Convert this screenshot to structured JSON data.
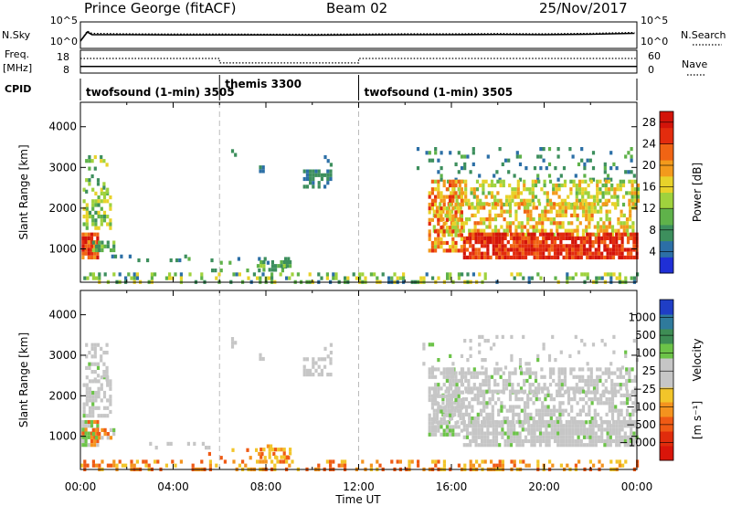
{
  "header": {
    "station": "Prince George (fitACF)",
    "beam": "Beam 02",
    "date": "25/Nov/2017"
  },
  "colors": {
    "scale_power": [
      "#1f2fd6",
      "#2c6fa6",
      "#3d8f5d",
      "#5fb24a",
      "#9fd23d",
      "#e8d22a",
      "#f39a1c",
      "#f06414",
      "#e32c0e",
      "#d3140a"
    ],
    "scale_velocity": [
      "#1f3ec6",
      "#2f7a9c",
      "#3e8d55",
      "#6cc348",
      "#c6c6c6",
      "#c6c6c6",
      "#f2c52a",
      "#f4931e",
      "#ef5a14",
      "#e02c0c",
      "#d9150a"
    ],
    "ground_scatter": "#c6c6c6"
  },
  "chart_data": [
    {
      "type": "line",
      "panel": "N.Sky / N.Search",
      "ylabel_left": "N.Sky",
      "ylabel_right": "N.Search",
      "left_ticks": [
        "10^5",
        "10^0"
      ],
      "right_ticks": [
        "10^5",
        "10^0"
      ],
      "ylim_log10": [
        0,
        5
      ],
      "x": [
        0,
        0.3,
        0.5,
        2,
        4,
        6,
        8,
        10,
        12,
        14,
        16,
        18,
        20,
        22,
        23.9
      ],
      "series": [
        {
          "name": "N.Sky",
          "style": "solid",
          "values": [
            1.2,
            3.2,
            2.6,
            2.6,
            2.55,
            2.55,
            2.55,
            2.5,
            2.55,
            2.6,
            2.6,
            2.65,
            2.6,
            2.7,
            2.9
          ]
        },
        {
          "name": "N.Search",
          "style": "dotted",
          "values": [
            1.2,
            3.4,
            2.9,
            2.8,
            2.75,
            2.75,
            2.7,
            2.7,
            2.75,
            2.8,
            2.8,
            2.85,
            2.8,
            2.9,
            3.1
          ]
        }
      ]
    },
    {
      "type": "line",
      "panel": "Freq. / Nave",
      "ylabel_left": "Freq.",
      "ylabel_left_unit": "[MHz]",
      "ylabel_right": "Nave",
      "left_ticks": [
        "18",
        "8"
      ],
      "right_ticks": [
        "60",
        "0"
      ],
      "ylim_left": [
        8,
        18
      ],
      "ylim_right": [
        0,
        60
      ],
      "series": [
        {
          "name": "Freq.",
          "style": "solid",
          "x": [
            0,
            24
          ],
          "values": [
            10.5,
            10.5
          ]
        },
        {
          "name": "Nave",
          "style": "dotted",
          "x": [
            0,
            6,
            6,
            12,
            12,
            24
          ],
          "values": [
            40,
            40,
            26,
            26,
            40,
            40
          ]
        }
      ]
    },
    {
      "type": "timeline",
      "panel": "CPID",
      "ylabel": "CPID",
      "segments": [
        {
          "start": 0,
          "end": 6,
          "label": "twofsound (1-min) 3505"
        },
        {
          "start": 6,
          "end": 12,
          "label": "themis 3300"
        },
        {
          "start": 12,
          "end": 24,
          "label": "twofsound (1-min) 3505"
        }
      ]
    },
    {
      "type": "heatmap",
      "panel": "power",
      "ylabel": "Slant Range [km]",
      "xlim_hours": [
        0,
        24
      ],
      "ylim_km": [
        180,
        4600
      ],
      "yticks": [
        1000,
        2000,
        3000,
        4000
      ],
      "colorbar_label": "Power [dB]",
      "colorbar_ticks": [
        "4",
        "8",
        "12",
        "16",
        "20",
        "24",
        "28"
      ],
      "colorbar_range": [
        0,
        30
      ]
    },
    {
      "type": "heatmap",
      "panel": "velocity",
      "ylabel": "Slant Range [km]",
      "xlabel": "Time UT",
      "xticks": [
        "00:00",
        "04:00",
        "08:00",
        "12:00",
        "16:00",
        "20:00",
        "00:00"
      ],
      "xlim_hours": [
        0,
        24
      ],
      "ylim_km": [
        180,
        4600
      ],
      "yticks": [
        1000,
        2000,
        3000,
        4000
      ],
      "colorbar_label": "Velocity",
      "colorbar_unit": "[m s⁻¹]",
      "colorbar_ticks": [
        "1000",
        "500",
        "100",
        "25",
        "−25",
        "−100",
        "−500",
        "−1000"
      ]
    }
  ]
}
